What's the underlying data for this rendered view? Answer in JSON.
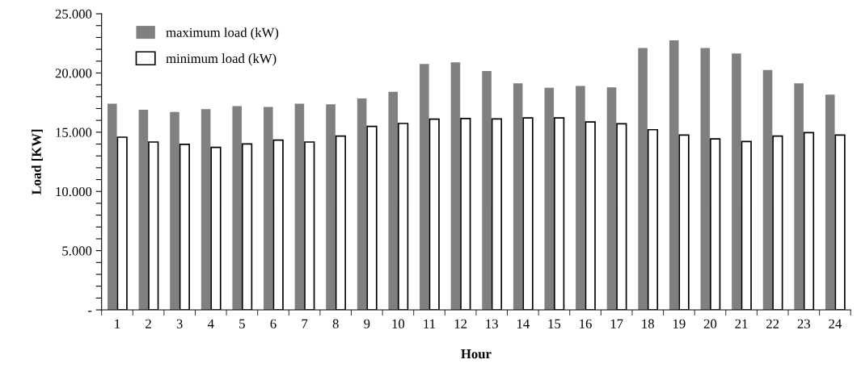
{
  "chart_data": {
    "type": "bar",
    "xlabel": "Hour",
    "ylabel": "Load [KW]",
    "categories": [
      "1",
      "2",
      "3",
      "4",
      "5",
      "6",
      "7",
      "8",
      "9",
      "10",
      "11",
      "12",
      "13",
      "14",
      "15",
      "16",
      "17",
      "18",
      "19",
      "20",
      "21",
      "22",
      "23",
      "24"
    ],
    "series": [
      {
        "name": "maximum load (kW)",
        "color": "#808080",
        "values": [
          17410,
          16890,
          16710,
          16940,
          17210,
          17140,
          17410,
          17350,
          17850,
          18410,
          20770,
          20900,
          20160,
          19130,
          18750,
          18910,
          18790,
          22110,
          22760,
          22110,
          21650,
          20250,
          19130,
          18180
        ]
      },
      {
        "name": "minimum load (kW)",
        "color": "#ffffff",
        "values": [
          14580,
          14170,
          13970,
          13720,
          14010,
          14330,
          14170,
          14670,
          15490,
          15740,
          16100,
          16160,
          16120,
          16210,
          16210,
          15870,
          15710,
          15210,
          14760,
          14440,
          14210,
          14670,
          14960,
          14760
        ]
      }
    ],
    "ylim": [
      0,
      25000
    ],
    "yticks": [
      {
        "value": 0,
        "label": "-"
      },
      {
        "value": 1000,
        "label": null
      },
      {
        "value": 2000,
        "label": null
      },
      {
        "value": 3000,
        "label": null
      },
      {
        "value": 4000,
        "label": null
      },
      {
        "value": 5000,
        "label": "5.000"
      },
      {
        "value": 6000,
        "label": null
      },
      {
        "value": 7000,
        "label": null
      },
      {
        "value": 8000,
        "label": null
      },
      {
        "value": 9000,
        "label": null
      },
      {
        "value": 10000,
        "label": "10.000"
      },
      {
        "value": 11000,
        "label": null
      },
      {
        "value": 12000,
        "label": null
      },
      {
        "value": 13000,
        "label": null
      },
      {
        "value": 14000,
        "label": null
      },
      {
        "value": 15000,
        "label": "15.000"
      },
      {
        "value": 16000,
        "label": null
      },
      {
        "value": 17000,
        "label": null
      },
      {
        "value": 18000,
        "label": null
      },
      {
        "value": 19000,
        "label": null
      },
      {
        "value": 20000,
        "label": "20.000"
      },
      {
        "value": 21000,
        "label": null
      },
      {
        "value": 22000,
        "label": null
      },
      {
        "value": 23000,
        "label": null
      },
      {
        "value": 24000,
        "label": null
      },
      {
        "value": 25000,
        "label": "25.000"
      }
    ],
    "grid": false,
    "legend": "top left"
  }
}
